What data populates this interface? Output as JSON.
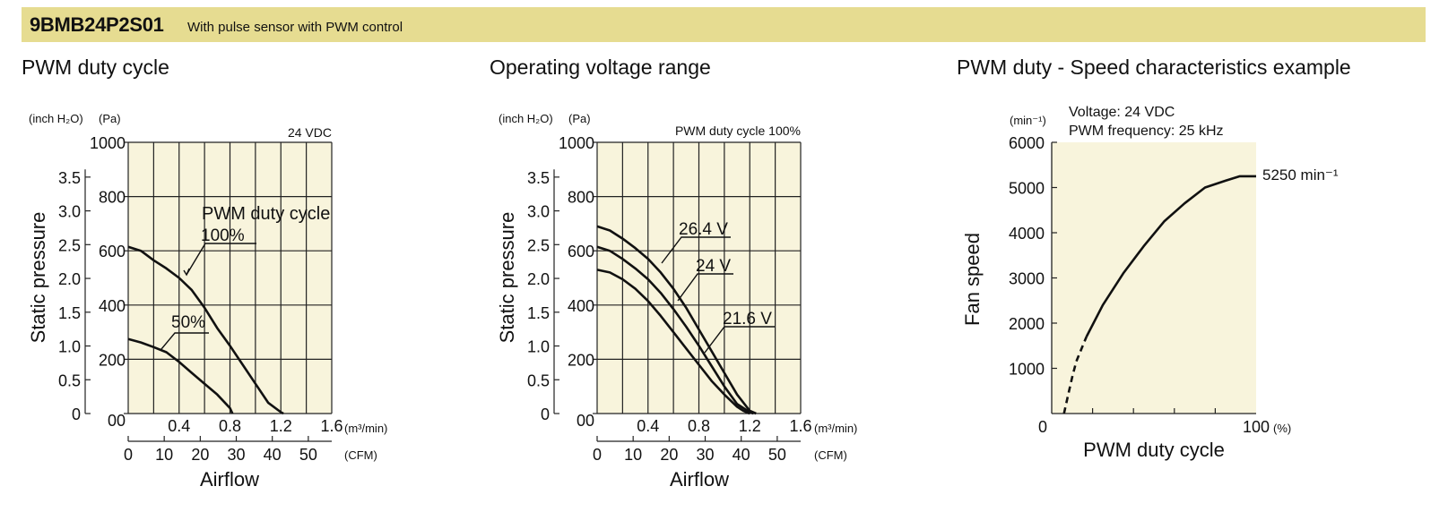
{
  "header": {
    "model": "9BMB24P2S01",
    "description": "With pulse sensor with PWM control",
    "band_color": "#e6dc91"
  },
  "colors": {
    "plot_background": "#f8f4dc",
    "grid": "#222222",
    "curve": "#111111"
  },
  "chart_data": [
    {
      "type": "line",
      "title": "PWM duty cycle",
      "condition": "24 VDC",
      "annotation": "PWM duty cycle",
      "ylabel": "Static pressure",
      "xlabel": "Airflow",
      "y_units": [
        "(inch H₂O)",
        "(Pa)"
      ],
      "x_units": [
        "(m³/min)",
        "(CFM)"
      ],
      "xlim": [
        0,
        1.6
      ],
      "ylim": [
        0,
        1000
      ],
      "x_ticks": [
        "0.4",
        "0.8",
        "1.2",
        "1.6"
      ],
      "x_origin": "0",
      "y_ticks_pa": [
        "0",
        "200",
        "400",
        "600",
        "800",
        "1000"
      ],
      "y_ticks_inh2o": [
        "0",
        "0.5",
        "1.0",
        "1.5",
        "2.0",
        "2.5",
        "3.0",
        "3.5"
      ],
      "cfm_ticks": [
        "0",
        "10",
        "20",
        "30",
        "40",
        "50"
      ],
      "series": [
        {
          "name": "100%",
          "x": [
            0,
            0.1,
            0.2,
            0.3,
            0.4,
            0.5,
            0.6,
            0.7,
            0.8,
            0.9,
            1.0,
            1.1,
            1.2,
            1.22
          ],
          "y": [
            615,
            600,
            565,
            535,
            500,
            455,
            390,
            315,
            250,
            180,
            110,
            40,
            5,
            0
          ]
        },
        {
          "name": "50%",
          "x": [
            0,
            0.1,
            0.2,
            0.3,
            0.4,
            0.5,
            0.6,
            0.7,
            0.8,
            0.82
          ],
          "y": [
            275,
            262,
            245,
            226,
            190,
            150,
            110,
            70,
            20,
            0
          ]
        }
      ]
    },
    {
      "type": "line",
      "title": "Operating voltage range",
      "condition": "PWM duty cycle 100%",
      "ylabel": "Static pressure",
      "xlabel": "Airflow",
      "y_units": [
        "(inch H₂O)",
        "(Pa)"
      ],
      "x_units": [
        "(m³/min)",
        "(CFM)"
      ],
      "xlim": [
        0,
        1.6
      ],
      "ylim": [
        0,
        1000
      ],
      "x_ticks": [
        "0.4",
        "0.8",
        "1.2",
        "1.6"
      ],
      "x_origin": "0",
      "y_ticks_pa": [
        "0",
        "200",
        "400",
        "600",
        "800",
        "1000"
      ],
      "y_ticks_inh2o": [
        "0",
        "0.5",
        "1.0",
        "1.5",
        "2.0",
        "2.5",
        "3.0",
        "3.5"
      ],
      "cfm_ticks": [
        "0",
        "10",
        "20",
        "30",
        "40",
        "50"
      ],
      "series": [
        {
          "name": "26.4 V",
          "x": [
            0,
            0.1,
            0.2,
            0.3,
            0.4,
            0.5,
            0.6,
            0.7,
            0.8,
            0.9,
            1.0,
            1.1,
            1.2,
            1.25
          ],
          "y": [
            690,
            675,
            645,
            610,
            570,
            520,
            460,
            390,
            310,
            230,
            150,
            70,
            10,
            0
          ]
        },
        {
          "name": "24 V",
          "x": [
            0,
            0.1,
            0.2,
            0.3,
            0.4,
            0.5,
            0.6,
            0.7,
            0.8,
            0.9,
            1.0,
            1.1,
            1.2,
            1.23
          ],
          "y": [
            615,
            600,
            570,
            535,
            495,
            445,
            385,
            320,
            250,
            175,
            100,
            35,
            5,
            0
          ]
        },
        {
          "name": "21.6 V",
          "x": [
            0,
            0.1,
            0.2,
            0.3,
            0.4,
            0.5,
            0.6,
            0.7,
            0.8,
            0.9,
            1.0,
            1.1,
            1.15,
            1.2
          ],
          "y": [
            530,
            520,
            495,
            460,
            415,
            360,
            300,
            240,
            180,
            120,
            70,
            25,
            10,
            0
          ]
        }
      ]
    },
    {
      "type": "line",
      "title": "PWM duty - Speed characteristics example",
      "annotation_lines": [
        "Voltage: 24 VDC",
        "PWM frequency: 25 kHz"
      ],
      "ylabel": "Fan speed",
      "xlabel": "PWM duty cycle",
      "y_unit": "(min⁻¹)",
      "x_unit": "(%)",
      "xlim": [
        0,
        100
      ],
      "ylim": [
        0,
        6000
      ],
      "x_tick_labels": [
        "0",
        "100"
      ],
      "y_ticks": [
        "1000",
        "2000",
        "3000",
        "4000",
        "5000",
        "6000"
      ],
      "end_label": "5250 min⁻¹",
      "series": [
        {
          "name": "dashed",
          "x": [
            6,
            8,
            10,
            12,
            17
          ],
          "y": [
            0,
            400,
            800,
            1150,
            1700
          ]
        },
        {
          "name": "solid",
          "x": [
            17,
            25,
            35,
            45,
            55,
            65,
            75,
            85,
            92,
            94,
            100
          ],
          "y": [
            1700,
            2400,
            3100,
            3700,
            4250,
            4650,
            5000,
            5150,
            5250,
            5250,
            5250
          ]
        }
      ]
    }
  ]
}
